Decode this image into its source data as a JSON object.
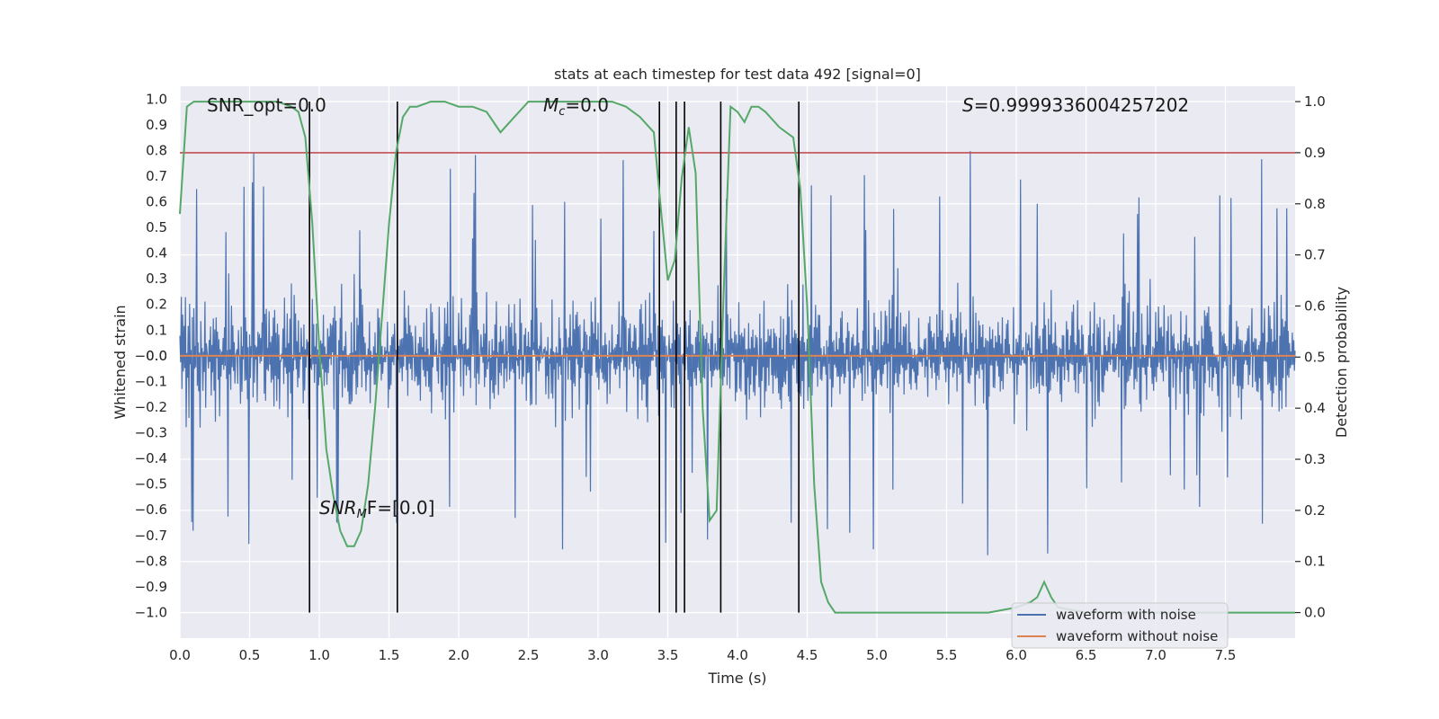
{
  "chart_data": {
    "type": "line",
    "title": "stats at each timestep for test data 492 [signal=0]",
    "xlabel": "Time (s)",
    "ylabel": "Whitened strain",
    "ylabel_right": "Detection probability",
    "xlim": [
      0,
      8
    ],
    "ylim": [
      -1.1,
      1.05
    ],
    "ylim_right": [
      -0.05,
      1.03
    ],
    "grid": true,
    "legend_position": "lower-right",
    "x_ticks": [
      "0.0",
      "0.5",
      "1.0",
      "1.5",
      "2.0",
      "2.5",
      "3.0",
      "3.5",
      "4.0",
      "4.5",
      "5.0",
      "5.5",
      "6.0",
      "6.5",
      "7.0",
      "7.5"
    ],
    "y_ticks": [
      "1.0",
      "0.9",
      "0.8",
      "0.7",
      "0.6",
      "0.5",
      "0.4",
      "0.3",
      "0.2",
      "0.1",
      "0.0",
      "−0.0",
      "−0.1",
      "−0.2",
      "−0.3",
      "−0.4",
      "−0.5",
      "−0.6",
      "−0.7",
      "−0.8",
      "−0.9",
      "−1.0"
    ],
    "y_ticks_right": [
      "1.0",
      "0.9",
      "0.8",
      "0.7",
      "0.6",
      "0.5",
      "0.4",
      "0.3",
      "0.2",
      "0.1",
      "0.0"
    ],
    "annotations": {
      "snr_opt": "SNR_opt=0.0",
      "mc_symbol": "M",
      "mc_sub": "c",
      "mc_value": "=0.0",
      "s_symbol": "S",
      "s_value": "=0.9999336004257202",
      "snr_mf_symbol": "SNR",
      "snr_mf_sub": "M",
      "snr_mf_value": "F=[0.0]"
    },
    "series": [
      {
        "name": "waveform with noise",
        "color": "#4c72b0",
        "style": "dense noise trace",
        "envelope_typical": [
          -0.45,
          0.45
        ],
        "envelope_peaks": [
          -1.0,
          0.88
        ]
      },
      {
        "name": "waveform without noise",
        "color": "#dd8452",
        "x": [
          0,
          8
        ],
        "y": [
          0.0,
          0.0
        ]
      },
      {
        "name": "detection probability",
        "axis": "right",
        "color": "#55a868",
        "x": [
          0.0,
          0.05,
          0.1,
          0.2,
          0.3,
          0.4,
          0.5,
          0.6,
          0.7,
          0.8,
          0.85,
          0.9,
          0.95,
          1.0,
          1.05,
          1.1,
          1.15,
          1.2,
          1.25,
          1.3,
          1.35,
          1.4,
          1.45,
          1.5,
          1.55,
          1.6,
          1.65,
          1.7,
          1.8,
          1.9,
          2.0,
          2.1,
          2.2,
          2.3,
          2.4,
          2.5,
          2.6,
          2.7,
          2.8,
          2.9,
          3.0,
          3.1,
          3.2,
          3.3,
          3.4,
          3.45,
          3.5,
          3.55,
          3.6,
          3.65,
          3.7,
          3.75,
          3.8,
          3.85,
          3.9,
          3.95,
          4.0,
          4.05,
          4.1,
          4.15,
          4.2,
          4.3,
          4.4,
          4.45,
          4.5,
          4.55,
          4.6,
          4.65,
          4.7,
          4.8,
          4.9,
          5.0,
          5.5,
          5.8,
          6.0,
          6.1,
          6.15,
          6.2,
          6.25,
          6.3,
          6.5,
          7.0,
          7.5,
          7.8,
          7.9,
          8.0
        ],
        "y": [
          0.78,
          0.99,
          1.0,
          1.0,
          1.0,
          1.0,
          1.0,
          1.0,
          1.0,
          0.99,
          0.98,
          0.93,
          0.76,
          0.52,
          0.32,
          0.23,
          0.16,
          0.13,
          0.13,
          0.16,
          0.25,
          0.4,
          0.58,
          0.76,
          0.9,
          0.97,
          0.99,
          0.99,
          1.0,
          1.0,
          0.99,
          0.99,
          0.98,
          0.94,
          0.97,
          1.0,
          1.0,
          1.0,
          1.0,
          1.0,
          1.0,
          1.0,
          0.99,
          0.97,
          0.94,
          0.79,
          0.65,
          0.69,
          0.85,
          0.95,
          0.86,
          0.4,
          0.18,
          0.2,
          0.62,
          0.99,
          0.98,
          0.96,
          0.99,
          0.99,
          0.98,
          0.95,
          0.93,
          0.83,
          0.6,
          0.25,
          0.06,
          0.02,
          0.0,
          0.0,
          0.0,
          0.0,
          0.0,
          0.0,
          0.01,
          0.02,
          0.03,
          0.06,
          0.03,
          0.01,
          0.0,
          0.0,
          0.0,
          0.0,
          0.0,
          0.0
        ]
      }
    ],
    "threshold_line": {
      "axis": "right",
      "y": 0.9,
      "color": "#c44e52"
    },
    "vertical_lines_x": [
      0.93,
      1.56,
      3.44,
      3.56,
      3.62,
      3.88,
      4.44
    ],
    "vertical_lines_color": "#000000"
  },
  "legend": [
    {
      "label": "waveform with noise",
      "color": "#4c72b0"
    },
    {
      "label": "waveform without noise",
      "color": "#dd8452"
    }
  ]
}
